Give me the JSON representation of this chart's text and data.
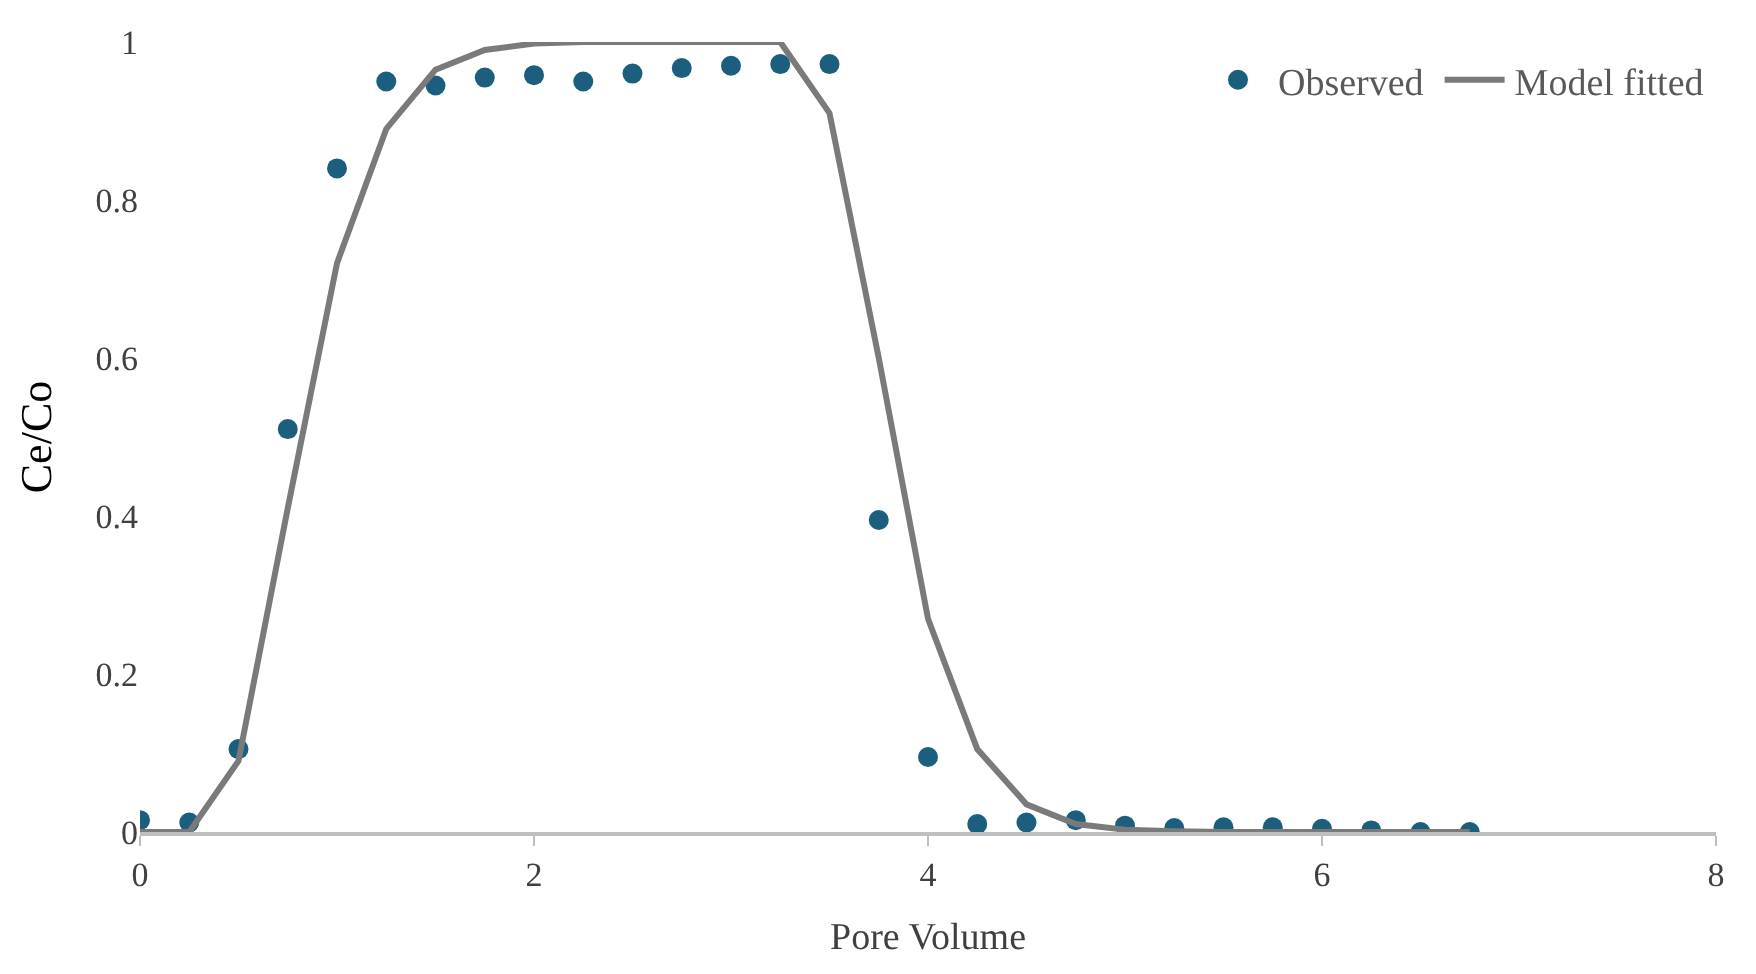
{
  "chart_data": {
    "type": "scatter",
    "xlabel": "Pore Volume",
    "ylabel": "Ce/Co",
    "xlim": [
      0,
      8
    ],
    "xticks": [
      0,
      2,
      4,
      6,
      8
    ],
    "ylim": [
      0,
      1
    ],
    "yticks": [
      0,
      0.2,
      0.4,
      0.6,
      0.8,
      1
    ],
    "legend": "top right",
    "series": [
      {
        "name": "Observed",
        "marker": "circle",
        "color": "#1b5e7e",
        "x": [
          0,
          0.25,
          0.5,
          0.75,
          1,
          1.25,
          1.5,
          1.75,
          2,
          2.25,
          2.5,
          2.75,
          3,
          3.25,
          3.5,
          3.75,
          4,
          4.25,
          4.5,
          4.75,
          5,
          5.25,
          5.5,
          5.75,
          6,
          6.25,
          6.5,
          6.75
        ],
        "values": [
          0.015,
          0.012,
          0.105,
          0.51,
          0.84,
          0.95,
          0.945,
          0.955,
          0.958,
          0.95,
          0.96,
          0.967,
          0.97,
          0.972,
          0.972,
          0.395,
          0.095,
          0.01,
          0.012,
          0.015,
          0.008,
          0.005,
          0.006,
          0.006,
          0.004,
          0.002,
          0.0,
          0.0
        ]
      },
      {
        "name": "Model fitted",
        "type": "line",
        "marker": "none",
        "line_style": "solid",
        "color": "#7a7a7a",
        "x": [
          0,
          0.25,
          0.5,
          0.75,
          1,
          1.25,
          1.5,
          1.75,
          2,
          2.25,
          2.5,
          2.75,
          3,
          3.25,
          3.5,
          3.75,
          4,
          4.25,
          4.5,
          4.75,
          5,
          5.25,
          5.5,
          5.75,
          6,
          6.25,
          6.5,
          6.75
        ],
        "values": [
          0,
          0,
          0.09,
          0.41,
          0.72,
          0.89,
          0.965,
          0.99,
          0.998,
          1,
          1,
          1,
          1,
          1,
          0.91,
          0.6,
          0.27,
          0.105,
          0.035,
          0.01,
          0.003,
          0.001,
          0,
          0,
          0,
          0,
          0,
          0
        ]
      }
    ]
  }
}
